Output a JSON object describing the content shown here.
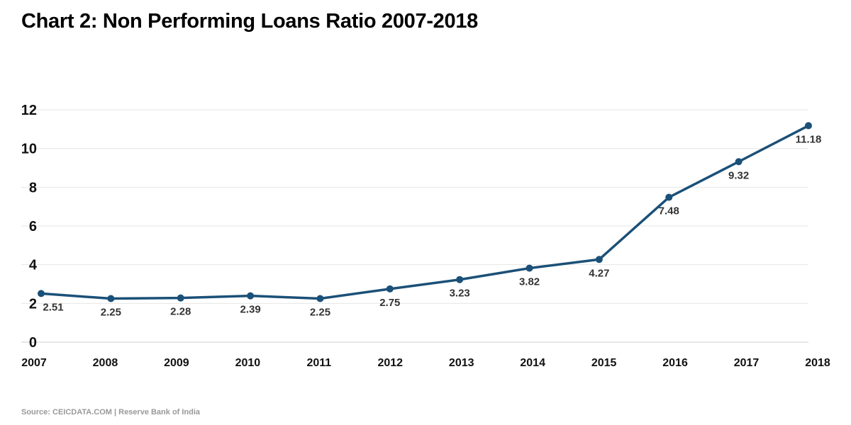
{
  "chart_data": {
    "type": "line",
    "title": "Chart 2: Non Performing Loans Ratio 2007-2018",
    "xlabel": "",
    "ylabel": "",
    "categories": [
      "2007",
      "2008",
      "2009",
      "2010",
      "2011",
      "2012",
      "2013",
      "2014",
      "2015",
      "2016",
      "2017",
      "2018"
    ],
    "series": [
      {
        "values": [
          2.51,
          2.25,
          2.28,
          2.39,
          2.25,
          2.75,
          3.23,
          3.82,
          4.27,
          7.48,
          9.32,
          11.18
        ],
        "data_labels": [
          "2.51",
          "2.25",
          "2.28",
          "2.39",
          "2.25",
          "2.75",
          "3.23",
          "3.82",
          "4.27",
          "7.48",
          "9.32",
          "11.18"
        ]
      }
    ],
    "yticks": [
      "0",
      "2",
      "4",
      "6",
      "8",
      "10",
      "12"
    ],
    "ylim": [
      0,
      12
    ],
    "grid": "horizontal",
    "legend": "none",
    "line_color": "#1b5078",
    "grid_color": "#e6e6e6"
  },
  "source": "Source: CEICDATA.COM | Reserve Bank of India"
}
